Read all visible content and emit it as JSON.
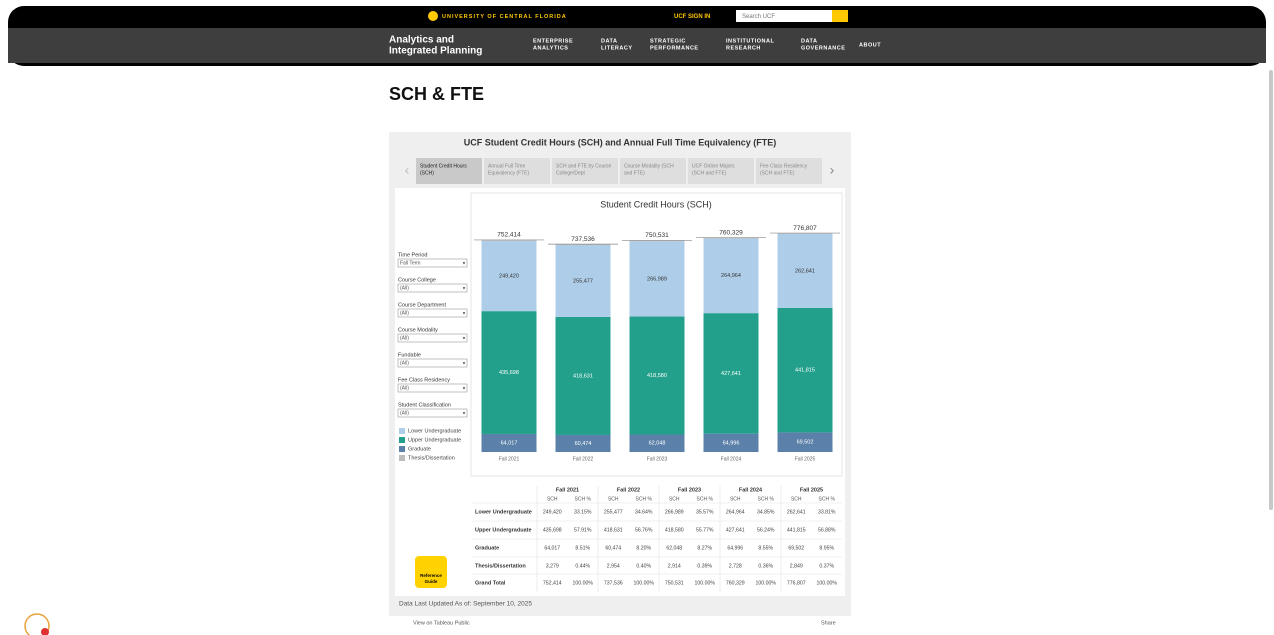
{
  "header": {
    "university": "UNIVERSITY OF CENTRAL FLORIDA",
    "sign_in": "UCF SIGN IN",
    "search_placeholder": "Search UCF",
    "site_title": [
      "Analytics and",
      "Integrated Planning"
    ],
    "nav": [
      [
        "ENTERPRISE",
        "ANALYTICS"
      ],
      [
        "DATA",
        "LITERACY"
      ],
      [
        "STRATEGIC",
        "PERFORMANCE"
      ],
      [
        "INSTITUTIONAL",
        "RESEARCH"
      ],
      [
        "DATA",
        "GOVERNANCE"
      ],
      [
        "ABOUT"
      ]
    ]
  },
  "page_title": "SCH & FTE",
  "dashboard": {
    "title": "UCF Student Credit Hours (SCH) and Annual Full Time Equivalency (FTE)",
    "tabs": [
      [
        "Student Credit Hours",
        "(SCH)"
      ],
      [
        "Annual Full Time",
        "Equivalency (FTE)"
      ],
      [
        "SCH and FTE by Course",
        "College/Dept"
      ],
      [
        "Course Modality (SCH",
        "and FTE)"
      ],
      [
        "UCF Online Majors",
        "(SCH and FTE)"
      ],
      [
        "Fee Class Residency",
        "(SCH and FTE)"
      ]
    ],
    "filters": [
      {
        "label": "Time Period",
        "value": "Fall Term"
      },
      {
        "label": "Course College",
        "value": "(All)"
      },
      {
        "label": "Course Department",
        "value": "(All)"
      },
      {
        "label": "Course Modality",
        "value": "(All)"
      },
      {
        "label": "Fundable",
        "value": "(All)"
      },
      {
        "label": "Fee Class Residency",
        "value": "(All)"
      },
      {
        "label": "Student Classification",
        "value": "(All)"
      }
    ],
    "reference_guide": [
      "Reference",
      "Guide"
    ],
    "last_updated": "Data Last Updated As of: September 10, 2025",
    "toolbar": {
      "view": "View on Tableau Public",
      "share": "Share"
    }
  },
  "chart_data": {
    "type": "bar",
    "stacked": true,
    "title": "Student Credit Hours (SCH)",
    "categories": [
      "Fall 2021",
      "Fall 2022",
      "Fall 2023",
      "Fall 2024",
      "Fall 2025"
    ],
    "series": [
      {
        "name": "Lower Undergraduate",
        "color": "#aecde8",
        "values": [
          249420,
          255477,
          266989,
          264964,
          262641
        ],
        "value_labels": [
          "249,420",
          "255,477",
          "266,989",
          "264,964",
          "262,641"
        ]
      },
      {
        "name": "Upper Undergraduate",
        "color": "#23a08b",
        "values": [
          435698,
          418631,
          418580,
          427641,
          441815
        ],
        "value_labels": [
          "435,698",
          "418,631",
          "418,580",
          "427,641",
          "441,815"
        ]
      },
      {
        "name": "Graduate",
        "color": "#5b80a9",
        "values": [
          64017,
          60474,
          62048,
          64996,
          69502
        ],
        "value_labels": [
          "64,017",
          "60,474",
          "62,048",
          "64,996",
          "69,502"
        ]
      },
      {
        "name": "Thesis/Dissertation",
        "color": "#bdbdbd",
        "values": [
          3279,
          2954,
          2914,
          2728,
          2849
        ],
        "value_labels": [
          "3,279",
          "2,954",
          "2,914",
          "2,728",
          "2,849"
        ]
      }
    ],
    "totals": [
      752414,
      737536,
      750531,
      760329,
      776807
    ],
    "total_labels": [
      "752,414",
      "737,536",
      "750,531",
      "760,329",
      "776,807"
    ],
    "ylim": [
      0,
      800000
    ]
  },
  "table": {
    "subheaders": [
      "SCH",
      "SCH %"
    ],
    "grand_total": "Grand Total",
    "percents": [
      [
        "33.15%",
        "34.64%",
        "35.57%",
        "34.85%",
        "33.81%"
      ],
      [
        "57.91%",
        "56.76%",
        "55.77%",
        "56.24%",
        "56.88%"
      ],
      [
        "8.51%",
        "8.20%",
        "8.27%",
        "8.55%",
        "8.95%"
      ],
      [
        "0.44%",
        "0.40%",
        "0.39%",
        "0.36%",
        "0.37%"
      ],
      [
        "100.00%",
        "100.00%",
        "100.00%",
        "100.00%",
        "100.00%"
      ]
    ]
  }
}
